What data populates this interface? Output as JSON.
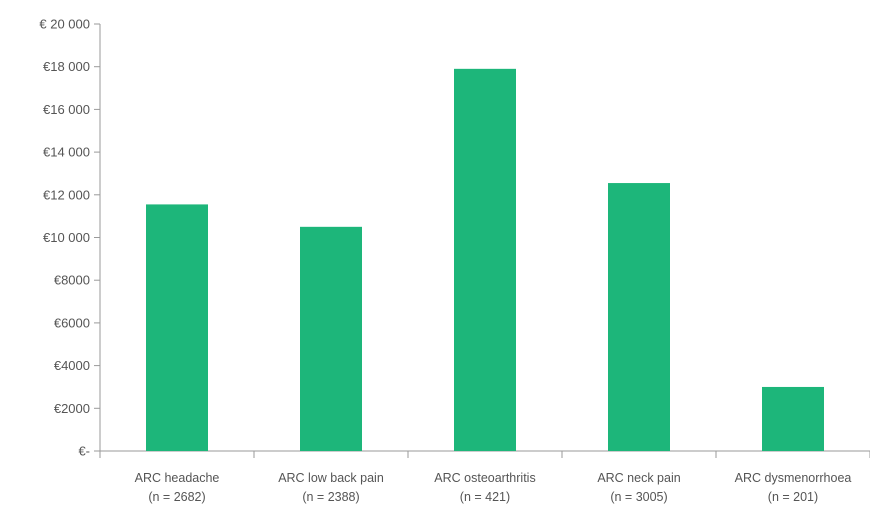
{
  "chart_data": {
    "type": "bar",
    "title": "",
    "xlabel": "",
    "ylabel": "",
    "categories": [
      [
        "ARC headache",
        "(n = 2682)"
      ],
      [
        "ARC low back pain",
        "(n = 2388)"
      ],
      [
        "ARC osteoarthritis",
        "(n = 421)"
      ],
      [
        "ARC neck pain",
        "(n = 3005)"
      ],
      [
        "ARC dysmenorrhoea",
        "(n = 201)"
      ]
    ],
    "values": [
      11550,
      10500,
      17900,
      12550,
      3000
    ],
    "ylim": [
      0,
      20000
    ],
    "yticks": [
      0,
      2000,
      4000,
      6000,
      8000,
      10000,
      12000,
      14000,
      16000,
      18000,
      20000
    ],
    "ytick_labels": [
      "€-",
      "€2000",
      "€4000",
      "€6000",
      "€8000",
      "€10 000",
      "€12 000",
      "€14 000",
      "€16 000",
      "€18 000",
      "€ 20 000"
    ],
    "grid": false,
    "bar_color": "#1db67a",
    "axis_color": "#9a9a9a"
  }
}
